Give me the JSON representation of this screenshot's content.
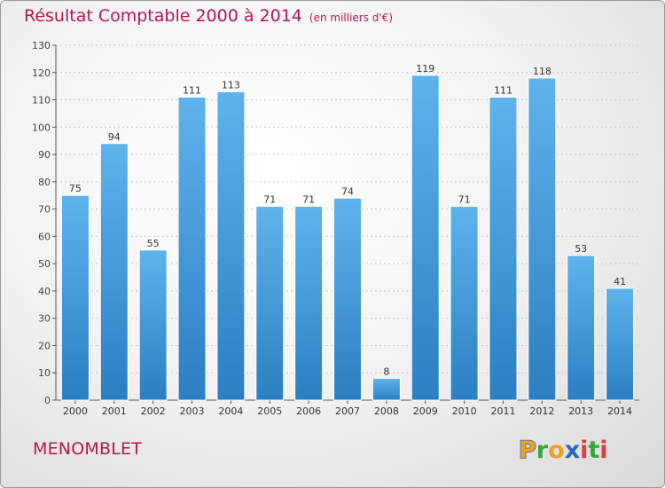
{
  "title": "Résultat Comptable 2000 à 2014",
  "subtitle": "(en milliers d'€)",
  "city": "MENOMBLET",
  "logo_text": "Proxiti",
  "colors": {
    "title": "#b5174e",
    "bar_top": "#5eb3ec",
    "bar_bottom": "#2b7fc2",
    "grid": "#c8c8c8"
  },
  "chart_data": {
    "type": "bar",
    "categories": [
      "2000",
      "2001",
      "2002",
      "2003",
      "2004",
      "2005",
      "2006",
      "2007",
      "2008",
      "2009",
      "2010",
      "2011",
      "2012",
      "2013",
      "2014"
    ],
    "values": [
      75,
      94,
      55,
      111,
      113,
      71,
      71,
      74,
      8,
      119,
      71,
      111,
      118,
      53,
      41
    ],
    "ylim": [
      0,
      130
    ],
    "yticks": [
      0,
      10,
      20,
      30,
      40,
      50,
      60,
      70,
      80,
      90,
      100,
      110,
      120,
      130
    ],
    "grid": true,
    "legend": "none",
    "xlabel": "",
    "ylabel": ""
  }
}
